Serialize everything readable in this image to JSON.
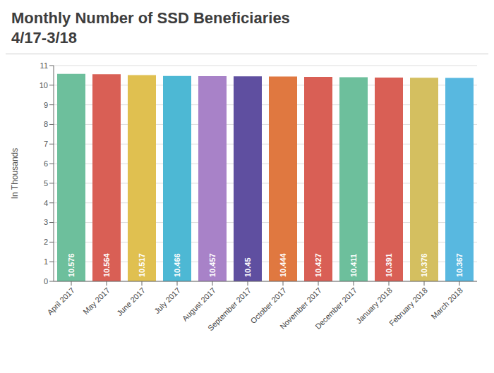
{
  "chart_data": {
    "type": "bar",
    "title": "Monthly Number of SSD Beneficiaries",
    "subtitle": "4/17-3/18",
    "ylabel": "In Thousands",
    "categories": [
      "April 2017",
      "May 2017",
      "June 2017",
      "July 2017",
      "August 2017",
      "September 2017",
      "October 2017",
      "November 2017",
      "December 2017",
      "January 2018",
      "February 2018",
      "March 2018"
    ],
    "values": [
      10.576,
      10.564,
      10.517,
      10.466,
      10.457,
      10.45,
      10.444,
      10.427,
      10.411,
      10.391,
      10.376,
      10.367
    ],
    "colors": [
      "#6dbf9c",
      "#d95f55",
      "#e0c050",
      "#4db8d4",
      "#a882c8",
      "#5f4fa0",
      "#e07840",
      "#d95f55",
      "#6dbf9c",
      "#d95f55",
      "#d4bf60",
      "#58b8e0"
    ],
    "ylim": [
      0,
      11
    ],
    "yticks": [
      0,
      1,
      2,
      3,
      4,
      5,
      6,
      7,
      8,
      9,
      10,
      11
    ],
    "grid": true,
    "data_labels": true
  }
}
